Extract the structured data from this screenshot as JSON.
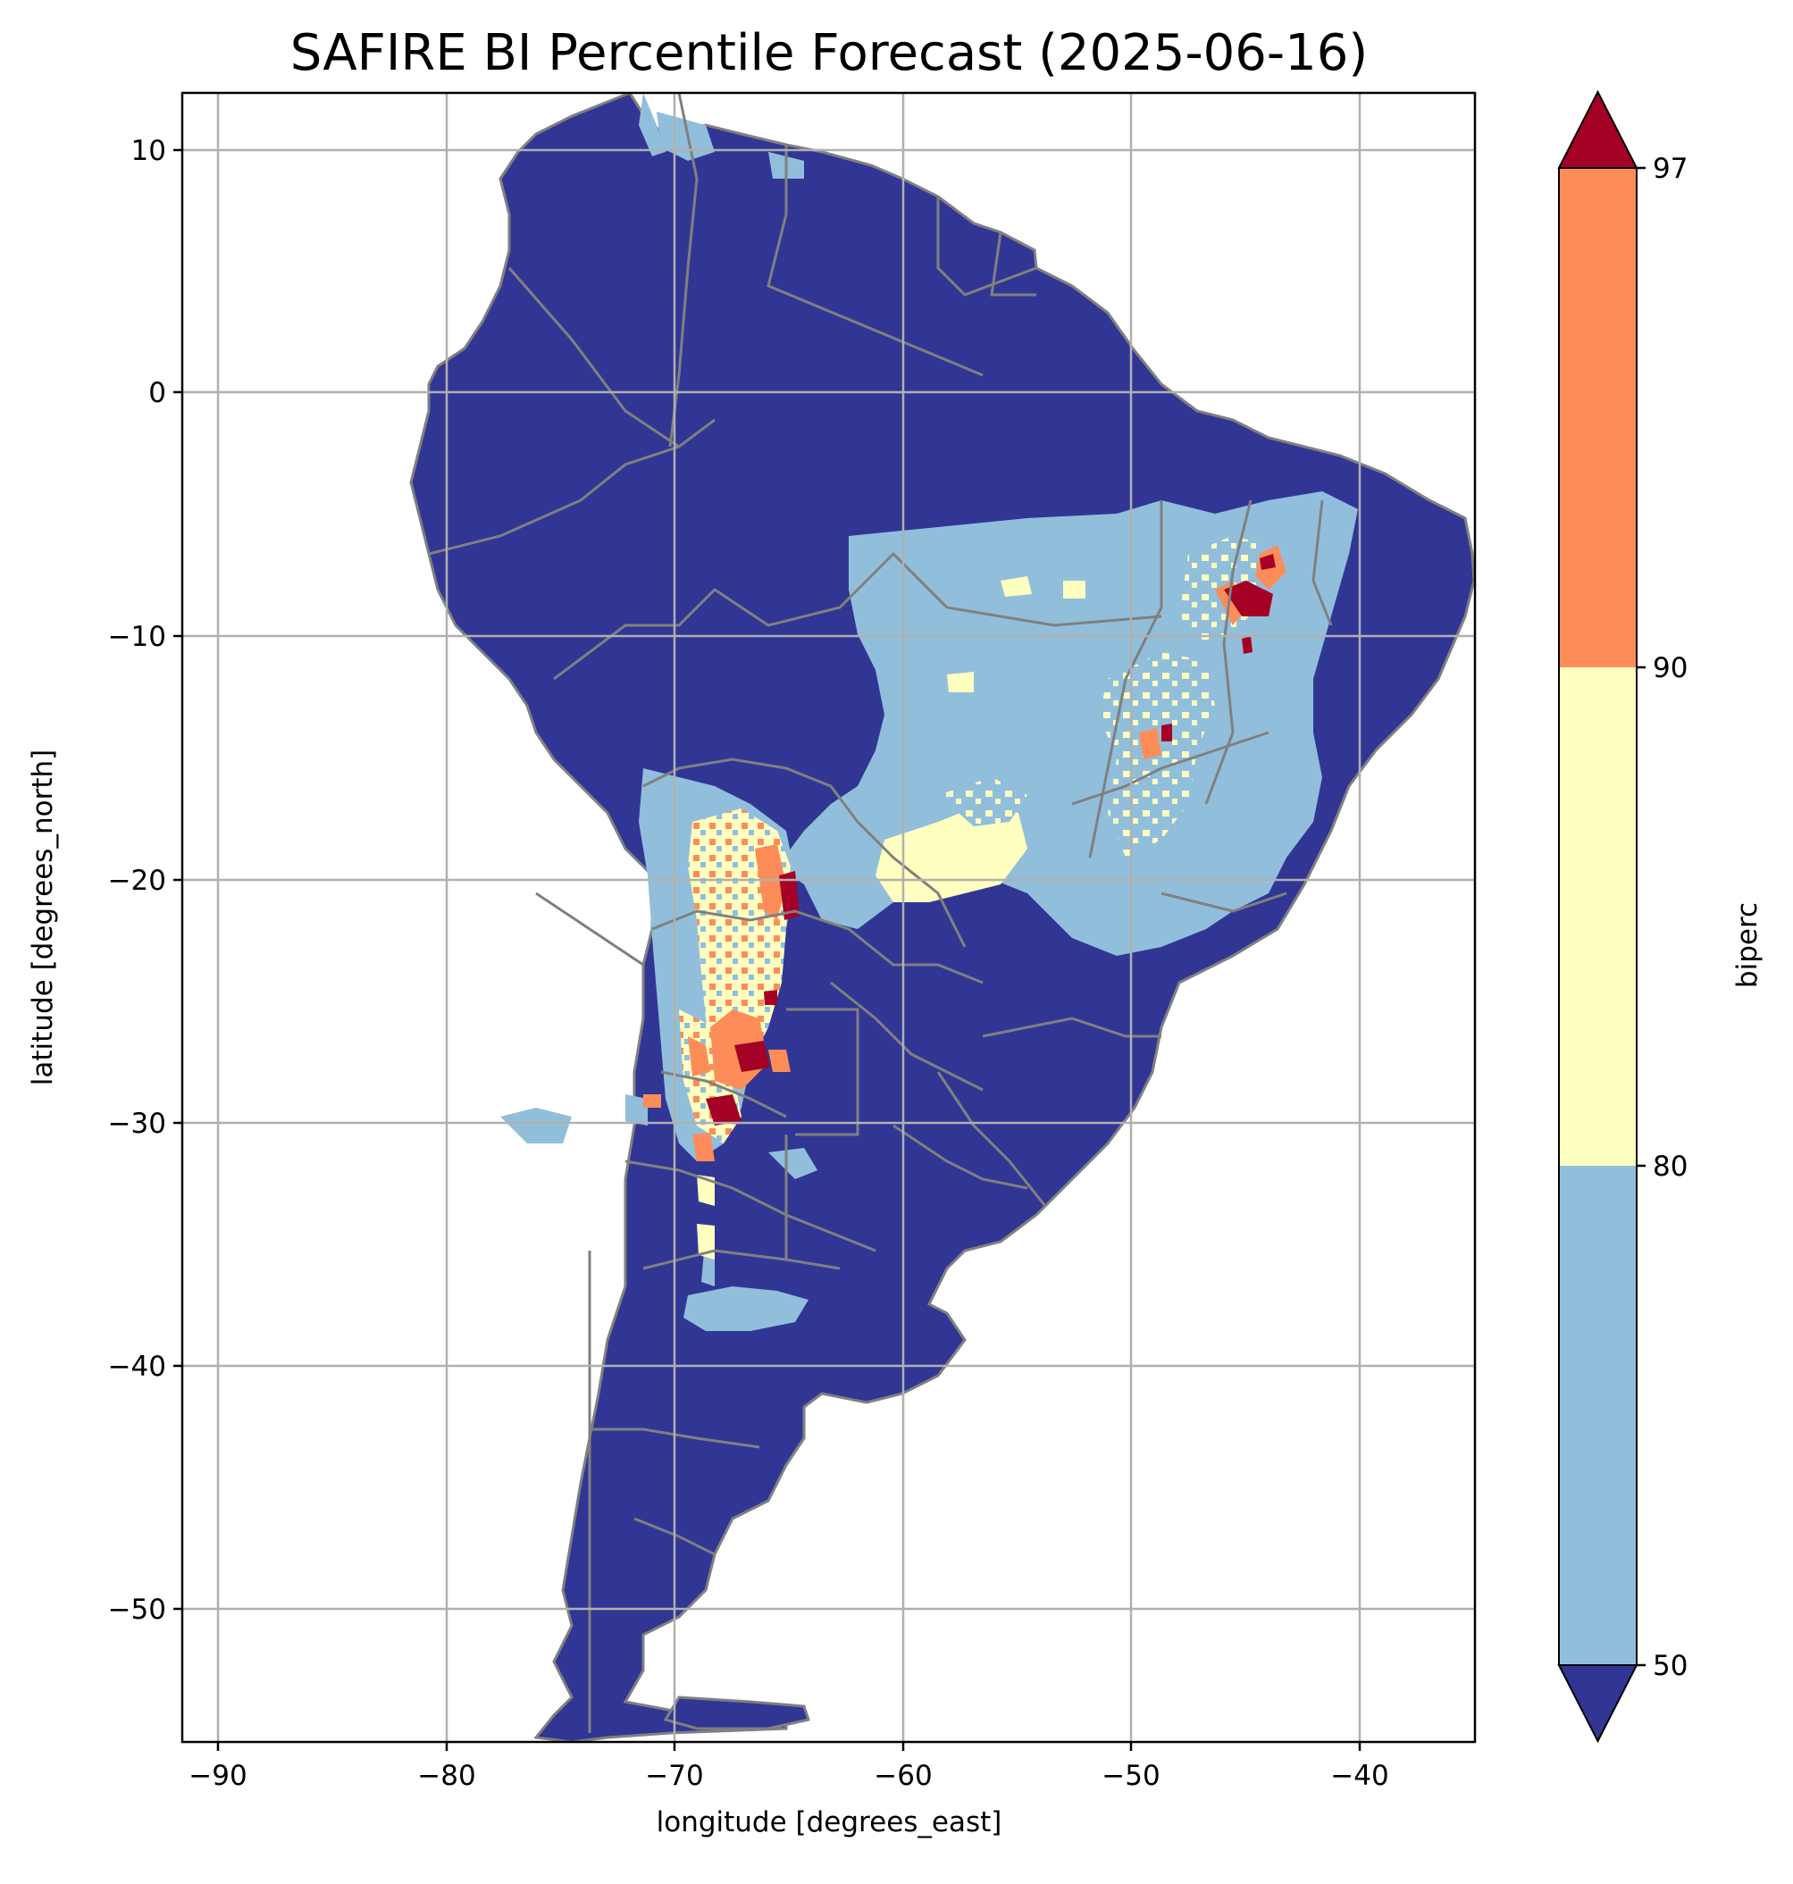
{
  "title": "SAFIRE BI Percentile Forecast (2025-06-16)",
  "xlabel": "longitude [degrees_east]",
  "ylabel": "latitude [degrees_north]",
  "colorbar": {
    "label": "biperc",
    "ticks": [
      "50",
      "80",
      "90",
      "97"
    ],
    "levels": [
      50,
      80,
      90,
      97
    ],
    "colors": {
      "under": "#313695",
      "b50_80": "#91bfdb",
      "b80_90": "#ffffbf",
      "b90_97": "#fc8d59",
      "over": "#a50026"
    },
    "extend": "both"
  },
  "chart_data": {
    "type": "heatmap",
    "title": "SAFIRE BI Percentile Forecast (2025-06-16)",
    "xlabel": "longitude [degrees_east]",
    "ylabel": "latitude [degrees_north]",
    "xlim": [
      -91.6,
      -35.0
    ],
    "ylim": [
      -55.9,
      12.4
    ],
    "xticks": [
      -90,
      -80,
      -70,
      -60,
      -50,
      -40
    ],
    "yticks": [
      10,
      0,
      -10,
      -20,
      -30,
      -40,
      -50
    ],
    "xtick_labels": [
      "−90",
      "−80",
      "−70",
      "−60",
      "−50",
      "−40"
    ],
    "ytick_labels": [
      "10",
      "0",
      "−10",
      "−20",
      "−30",
      "−40",
      "−50"
    ],
    "grid": true,
    "region": "South America",
    "regions": [
      {
        "category": ">=97",
        "lon": -65.3,
        "lat": -21.0
      },
      {
        "category": ">=97",
        "lon": -67.8,
        "lat": -27.5
      },
      {
        "category": ">=97",
        "lon": -68.5,
        "lat": -29.5
      },
      {
        "category": ">=97",
        "lon": -45.0,
        "lat": -8.5
      },
      {
        "category": ">=97",
        "lon": -48.3,
        "lat": -14.2
      },
      {
        "category": "90-97",
        "lon": -68.8,
        "lat": -26.5
      },
      {
        "category": "90-97",
        "lon": -43.8,
        "lat": -7.5
      },
      {
        "category": "80-90",
        "lon": -67.0,
        "lat": -20.5
      },
      {
        "category": "80-90",
        "lon": -57.0,
        "lat": -18.5
      },
      {
        "category": "80-90",
        "lon": -48.5,
        "lat": -17.5
      },
      {
        "category": "50-80",
        "lon": -52.0,
        "lat": -11.0
      },
      {
        "category": "50-80",
        "lon": -68.0,
        "lat": -38.0
      }
    ]
  }
}
